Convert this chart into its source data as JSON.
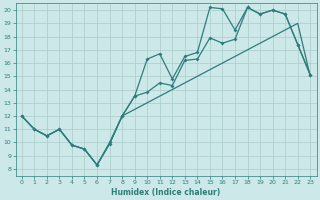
{
  "xlabel": "Humidex (Indice chaleur)",
  "bg_color": "#cce8e8",
  "grid_color": "#aacccc",
  "line_color": "#2e7d7d",
  "xlim": [
    -0.5,
    23.5
  ],
  "ylim": [
    7.5,
    20.5
  ],
  "xticks": [
    0,
    1,
    2,
    3,
    4,
    5,
    6,
    7,
    8,
    9,
    10,
    11,
    12,
    13,
    14,
    15,
    16,
    17,
    18,
    19,
    20,
    21,
    22,
    23
  ],
  "yticks": [
    8,
    9,
    10,
    11,
    12,
    13,
    14,
    15,
    16,
    17,
    18,
    19,
    20
  ],
  "line1_x": [
    0,
    1,
    2,
    3,
    4,
    5,
    6,
    7,
    8,
    9,
    10,
    11,
    12,
    13,
    14,
    15,
    16,
    17,
    18,
    19,
    20,
    21,
    22,
    23
  ],
  "line1_y": [
    12,
    11,
    10.5,
    11,
    9.8,
    9.5,
    8.3,
    9.9,
    12,
    12.5,
    13,
    13.5,
    14,
    14.5,
    15,
    15.5,
    16,
    16.5,
    17,
    17.5,
    18,
    18.5,
    19,
    15.0
  ],
  "line2_x": [
    0,
    1,
    2,
    3,
    4,
    5,
    6,
    7,
    8,
    9,
    10,
    11,
    12,
    13,
    14,
    15,
    16,
    17,
    18,
    19,
    20,
    21,
    22,
    23
  ],
  "line2_y": [
    12,
    11,
    10.5,
    11,
    9.8,
    9.5,
    8.3,
    9.9,
    12,
    13.5,
    13.8,
    14.5,
    14.3,
    16.2,
    16.3,
    17.9,
    17.5,
    17.8,
    20.2,
    19.7,
    20.0,
    19.7,
    17.4,
    15.1
  ],
  "line3_x": [
    0,
    1,
    2,
    3,
    4,
    5,
    6,
    7,
    8,
    9,
    10,
    11,
    12,
    13,
    14,
    15,
    16,
    17,
    18,
    19,
    20,
    21,
    22,
    23
  ],
  "line3_y": [
    12,
    11,
    10.5,
    11,
    9.8,
    9.5,
    8.3,
    10.0,
    12,
    13.5,
    16.3,
    16.7,
    14.8,
    16.5,
    16.8,
    20.2,
    20.1,
    18.5,
    20.2,
    19.7,
    20.0,
    19.7,
    17.4,
    15.1
  ]
}
